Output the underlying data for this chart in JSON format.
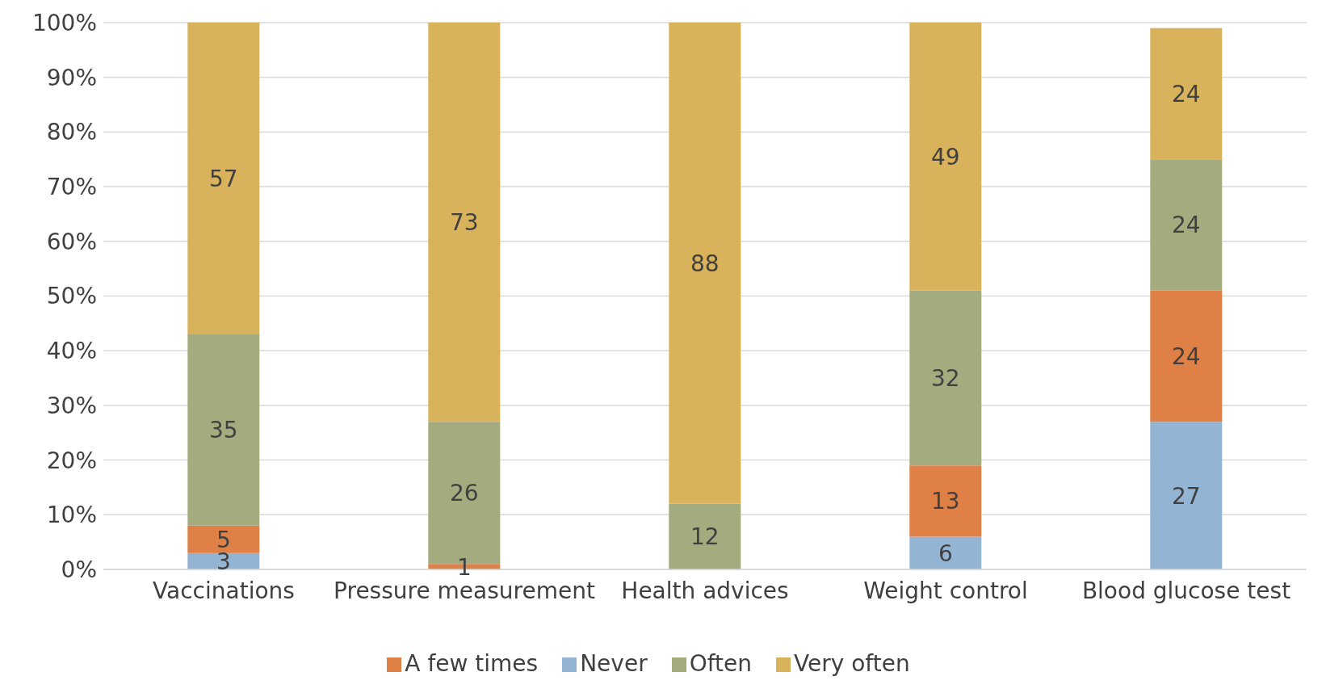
{
  "chart_data": {
    "type": "bar",
    "stacked": true,
    "categories": [
      "Vaccinations",
      "Pressure measurement",
      "Health advices",
      "Weight control",
      "Blood glucose test"
    ],
    "series": [
      {
        "name": "Never",
        "color": "#93b4d3",
        "values": [
          3,
          null,
          null,
          6,
          27
        ]
      },
      {
        "name": "A few times",
        "color": "#df8046",
        "values": [
          5,
          1,
          null,
          13,
          24
        ]
      },
      {
        "name": "Often",
        "color": "#a3ab7f",
        "values": [
          35,
          26,
          12,
          32,
          24
        ]
      },
      {
        "name": "Very often",
        "color": "#d9b25c",
        "values": [
          57,
          73,
          88,
          49,
          24
        ]
      }
    ],
    "ylim": [
      0,
      100
    ],
    "yticks": [
      {
        "value": 0,
        "label": "0%"
      },
      {
        "value": 10,
        "label": "10%"
      },
      {
        "value": 20,
        "label": "20%"
      },
      {
        "value": 30,
        "label": "30%"
      },
      {
        "value": 40,
        "label": "40%"
      },
      {
        "value": 50,
        "label": "50%"
      },
      {
        "value": 60,
        "label": "60%"
      },
      {
        "value": 70,
        "label": "70%"
      },
      {
        "value": 80,
        "label": "80%"
      },
      {
        "value": 90,
        "label": "90%"
      },
      {
        "value": 100,
        "label": "100%"
      }
    ],
    "grid": "y",
    "legend": "bottom",
    "data_labels": true
  }
}
